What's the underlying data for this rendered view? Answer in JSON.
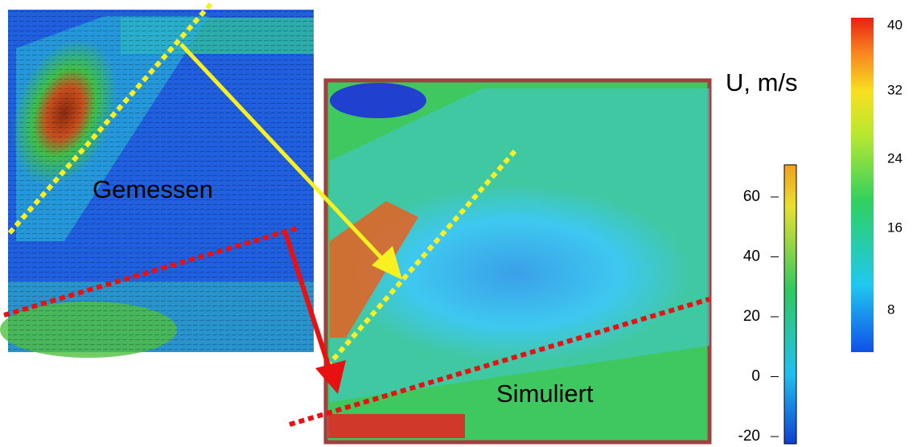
{
  "labels": {
    "measured": "Gemessen",
    "simulated": "Simuliert",
    "unit": "U, m/s"
  },
  "colorbar_main": {
    "ticks": [
      "40",
      "32",
      "24",
      "16",
      "8"
    ]
  },
  "colorbar_small": {
    "ticks": [
      "60",
      "40",
      "20",
      "0",
      "-20"
    ]
  }
}
